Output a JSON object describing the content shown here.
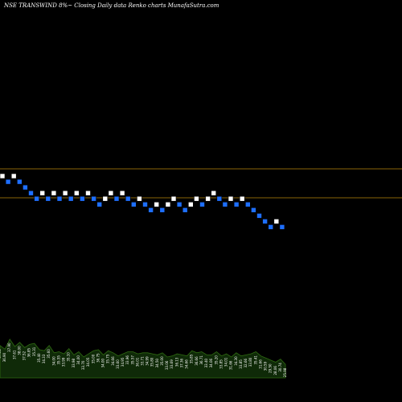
{
  "header": {
    "title": "NSE TRANSWIND 8%~  Closing Daily data  Renko  charts MunafaSutra.com"
  },
  "colors": {
    "background": "#000000",
    "up_brick": "#ffffff",
    "down_brick": "#1e6fff",
    "reference_line": "#b8860b",
    "volume_fill": "#0f2a08",
    "volume_edge": "#2f6b12",
    "label_text": "#ffffff"
  },
  "chart_data": {
    "type": "renko",
    "reference_levels": [
      "upper",
      "lower"
    ],
    "bricks": [
      {
        "dir": "up",
        "level": 0
      },
      {
        "dir": "down",
        "level": 1
      },
      {
        "dir": "up",
        "level": 0
      },
      {
        "dir": "down",
        "level": 1
      },
      {
        "dir": "down",
        "level": 2
      },
      {
        "dir": "down",
        "level": 3
      },
      {
        "dir": "down",
        "level": 4
      },
      {
        "dir": "up",
        "level": 3
      },
      {
        "dir": "down",
        "level": 4
      },
      {
        "dir": "up",
        "level": 3
      },
      {
        "dir": "down",
        "level": 4
      },
      {
        "dir": "up",
        "level": 3
      },
      {
        "dir": "down",
        "level": 4
      },
      {
        "dir": "up",
        "level": 3
      },
      {
        "dir": "down",
        "level": 4
      },
      {
        "dir": "up",
        "level": 3
      },
      {
        "dir": "down",
        "level": 4
      },
      {
        "dir": "down",
        "level": 5
      },
      {
        "dir": "up",
        "level": 4
      },
      {
        "dir": "up",
        "level": 3
      },
      {
        "dir": "down",
        "level": 4
      },
      {
        "dir": "up",
        "level": 3
      },
      {
        "dir": "down",
        "level": 4
      },
      {
        "dir": "down",
        "level": 5
      },
      {
        "dir": "up",
        "level": 4
      },
      {
        "dir": "down",
        "level": 5
      },
      {
        "dir": "down",
        "level": 6
      },
      {
        "dir": "up",
        "level": 5
      },
      {
        "dir": "down",
        "level": 6
      },
      {
        "dir": "up",
        "level": 5
      },
      {
        "dir": "up",
        "level": 4
      },
      {
        "dir": "down",
        "level": 5
      },
      {
        "dir": "down",
        "level": 6
      },
      {
        "dir": "up",
        "level": 5
      },
      {
        "dir": "up",
        "level": 4
      },
      {
        "dir": "down",
        "level": 5
      },
      {
        "dir": "up",
        "level": 4
      },
      {
        "dir": "up",
        "level": 3
      },
      {
        "dir": "down",
        "level": 4
      },
      {
        "dir": "down",
        "level": 5
      },
      {
        "dir": "up",
        "level": 4
      },
      {
        "dir": "down",
        "level": 5
      },
      {
        "dir": "up",
        "level": 4
      },
      {
        "dir": "down",
        "level": 5
      },
      {
        "dir": "down",
        "level": 6
      },
      {
        "dir": "down",
        "level": 7
      },
      {
        "dir": "down",
        "level": 8
      },
      {
        "dir": "down",
        "level": 9
      },
      {
        "dir": "up",
        "level": 8
      },
      {
        "dir": "down",
        "level": 9
      }
    ],
    "volume_labels": [
      "37.31",
      "36.90",
      "37.90",
      "37.61",
      "38.00",
      "37.52",
      "36.85",
      "35.31",
      "35.40",
      "34.33",
      "35.60",
      "34.00",
      "35.55",
      "33.99",
      "35.10",
      "33.98",
      "34.00",
      "33.70",
      "34.05",
      "35.00",
      "36.75",
      "34.00",
      "35.75",
      "34.66",
      "33.60",
      "34.95",
      "33.96",
      "35.57",
      "36.01",
      "33.71",
      "34.99",
      "35.80",
      "34.50",
      "35.00",
      "33.06",
      "33.69",
      "36.13",
      "37.36",
      "34.66",
      "35.85",
      "36.66",
      "36.71",
      "33.40",
      "34.06",
      "35.20",
      "33.85",
      "34.01",
      "31.66",
      "34.30",
      "33.85",
      "32.66",
      "33.80",
      "35.41",
      "31.66",
      "30.59",
      "29.50",
      "28.06",
      "30.74",
      "25.98"
    ],
    "volume_heights": [
      0.62,
      0.55,
      0.74,
      0.6,
      0.68,
      0.58,
      0.64,
      0.66,
      0.54,
      0.52,
      0.62,
      0.48,
      0.5,
      0.46,
      0.56,
      0.44,
      0.5,
      0.4,
      0.46,
      0.52,
      0.54,
      0.44,
      0.52,
      0.48,
      0.42,
      0.46,
      0.5,
      0.5,
      0.46,
      0.48,
      0.48,
      0.46,
      0.44,
      0.48,
      0.4,
      0.42,
      0.46,
      0.44,
      0.42,
      0.52,
      0.48,
      0.5,
      0.44,
      0.44,
      0.5,
      0.42,
      0.46,
      0.4,
      0.48,
      0.42,
      0.44,
      0.46,
      0.5,
      0.42,
      0.38,
      0.34,
      0.3,
      0.36,
      0.26
    ]
  }
}
